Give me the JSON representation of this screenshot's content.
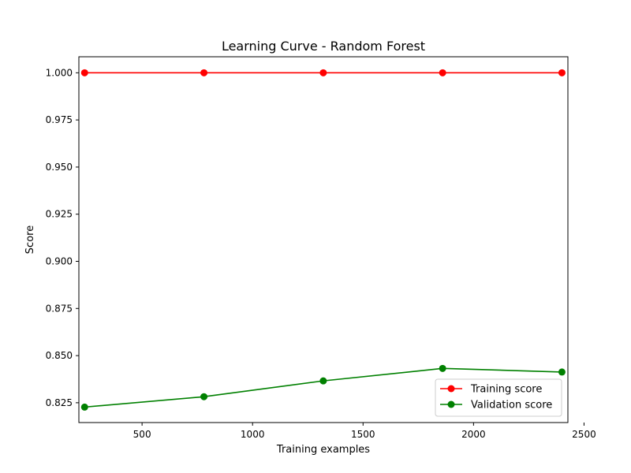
{
  "chart_data": {
    "type": "line",
    "title": "Learning Curve - Random Forest",
    "xlabel": "Training examples",
    "ylabel": "Score",
    "xlim": [
      214,
      2427
    ],
    "ylim": [
      0.8145,
      1.0085
    ],
    "x_ticks": [
      500,
      1000,
      1500,
      2000,
      2500
    ],
    "y_ticks": [
      0.825,
      0.85,
      0.875,
      0.9,
      0.925,
      0.95,
      0.975,
      1.0
    ],
    "x_tick_labels": [
      "500",
      "1000",
      "1500",
      "2000",
      "2500"
    ],
    "y_tick_labels": [
      "0.825",
      "0.850",
      "0.875",
      "0.900",
      "0.925",
      "0.950",
      "0.975",
      "1.000"
    ],
    "grid": false,
    "legend_position": "lower-right",
    "x": [
      240,
      780,
      1320,
      1860,
      2400
    ],
    "series": [
      {
        "name": "Training score",
        "color": "#ff0000",
        "values": [
          1.0,
          1.0,
          1.0,
          1.0,
          1.0
        ]
      },
      {
        "name": "Validation score",
        "color": "#008000",
        "values": [
          0.8227,
          0.8282,
          0.8366,
          0.8432,
          0.8413
        ]
      }
    ]
  }
}
